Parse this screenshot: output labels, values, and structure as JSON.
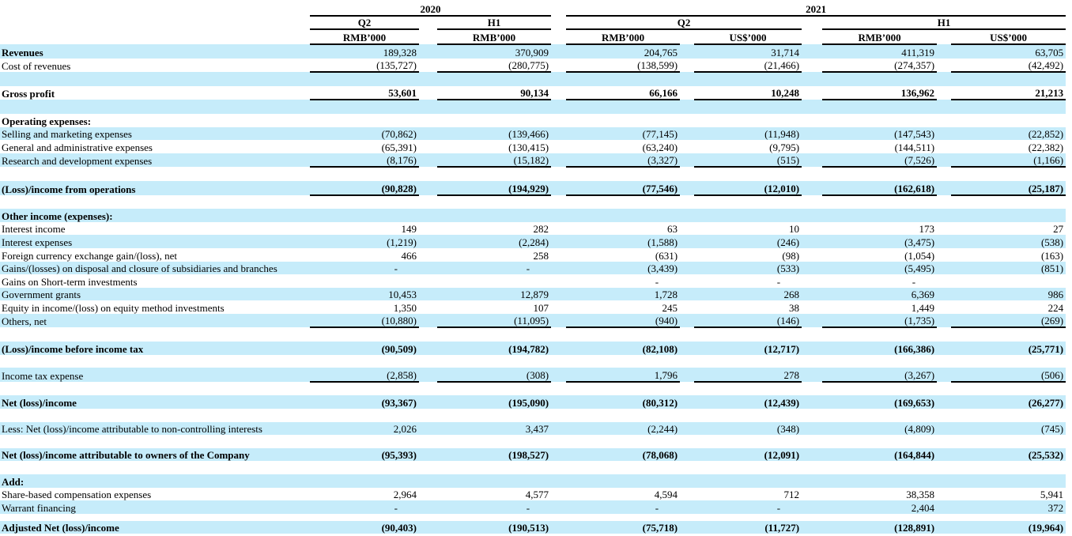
{
  "colors": {
    "stripe": "#c6ecfa",
    "line": "#000000"
  },
  "table": {
    "header": {
      "years": [
        "2020",
        "2021"
      ],
      "periods": [
        "Q2",
        "H1",
        "Q2",
        "H1"
      ],
      "units": [
        "RMB’000",
        "RMB’000",
        "RMB’000",
        "US$’000",
        "RMB’000",
        "US$’000"
      ]
    },
    "rows": [
      {
        "type": "data",
        "label": "Revenues",
        "label_bold": true,
        "values_bold": false,
        "shade": true,
        "underline": false,
        "values": [
          "189,328",
          "370,909",
          "204,765",
          "31,714",
          "411,319",
          "63,705"
        ]
      },
      {
        "type": "data",
        "label": "Cost of revenues",
        "label_bold": false,
        "values_bold": false,
        "shade": false,
        "underline": true,
        "values": [
          "(135,727)",
          "(280,775)",
          "(138,599)",
          "(21,466)",
          "(274,357)",
          "(42,492)"
        ]
      },
      {
        "type": "blank",
        "shade": true
      },
      {
        "type": "data",
        "label": "Gross profit",
        "label_bold": true,
        "values_bold": true,
        "shade": false,
        "underline": true,
        "values": [
          "53,601",
          "90,134",
          "66,166",
          "10,248",
          "136,962",
          "21,213"
        ]
      },
      {
        "type": "blank",
        "shade": true
      },
      {
        "type": "data",
        "label": "Operating expenses:",
        "label_bold": true,
        "values_bold": false,
        "shade": false,
        "underline": false,
        "values": [
          "",
          "",
          "",
          "",
          "",
          ""
        ]
      },
      {
        "type": "data",
        "label": "Selling and marketing expenses",
        "label_bold": false,
        "values_bold": false,
        "shade": true,
        "underline": false,
        "values": [
          "(70,862)",
          "(139,466)",
          "(77,145)",
          "(11,948)",
          "(147,543)",
          "(22,852)"
        ]
      },
      {
        "type": "data",
        "label": "General and administrative expenses",
        "label_bold": false,
        "values_bold": false,
        "shade": false,
        "underline": false,
        "values": [
          "(65,391)",
          "(130,415)",
          "(63,240)",
          "(9,795)",
          "(144,511)",
          "(22,382)"
        ]
      },
      {
        "type": "data",
        "label": "Research and development expenses",
        "label_bold": false,
        "values_bold": false,
        "shade": true,
        "underline": true,
        "values": [
          "(8,176)",
          "(15,182)",
          "(3,327)",
          "(515)",
          "(7,526)",
          "(1,166)"
        ]
      },
      {
        "type": "blank",
        "shade": false
      },
      {
        "type": "data",
        "label": "(Loss)/income from operations",
        "label_bold": true,
        "values_bold": true,
        "shade": true,
        "underline": true,
        "values": [
          "(90,828)",
          "(194,929)",
          "(77,546)",
          "(12,010)",
          "(162,618)",
          "(25,187)"
        ]
      },
      {
        "type": "blank",
        "shade": false
      },
      {
        "type": "data",
        "label": "Other income (expenses):",
        "label_bold": true,
        "values_bold": false,
        "shade": true,
        "underline": false,
        "values": [
          "",
          "",
          "",
          "",
          "",
          ""
        ]
      },
      {
        "type": "data",
        "label": "Interest income",
        "label_bold": false,
        "values_bold": false,
        "shade": false,
        "underline": false,
        "values": [
          "149",
          "282",
          "63",
          "10",
          "173",
          "27"
        ]
      },
      {
        "type": "data",
        "label": "Interest expenses",
        "label_bold": false,
        "values_bold": false,
        "shade": true,
        "underline": false,
        "values": [
          "(1,219)",
          "(2,284)",
          "(1,588)",
          "(246)",
          "(3,475)",
          "(538)"
        ]
      },
      {
        "type": "data",
        "label": "Foreign currency exchange gain/(loss), net",
        "label_bold": false,
        "values_bold": false,
        "shade": false,
        "underline": false,
        "values": [
          "466",
          "258",
          "(631)",
          "(98)",
          "(1,054)",
          "(163)"
        ]
      },
      {
        "type": "data",
        "label": "Gains/(losses) on disposal and closure of subsidiaries and branches",
        "label_bold": false,
        "values_bold": false,
        "shade": true,
        "underline": false,
        "values": [
          "-",
          "-",
          "(3,439)",
          "(533)",
          "(5,495)",
          "(851)"
        ]
      },
      {
        "type": "data",
        "label": "Gains on Short-term investments",
        "label_bold": false,
        "values_bold": false,
        "shade": false,
        "underline": false,
        "values": [
          "",
          "",
          "-",
          "-",
          "-",
          ""
        ]
      },
      {
        "type": "data",
        "label": "Government grants",
        "label_bold": false,
        "values_bold": false,
        "shade": true,
        "underline": false,
        "values": [
          "10,453",
          "12,879",
          "1,728",
          "268",
          "6,369",
          "986"
        ]
      },
      {
        "type": "data",
        "label": "Equity in income/(loss) on equity method investments",
        "label_bold": false,
        "values_bold": false,
        "shade": false,
        "underline": false,
        "values": [
          "1,350",
          "107",
          "245",
          "38",
          "1,449",
          "224"
        ]
      },
      {
        "type": "data",
        "label": "Others, net",
        "label_bold": false,
        "values_bold": false,
        "shade": true,
        "underline": true,
        "values": [
          "(10,880)",
          "(11,095)",
          "(940)",
          "(146)",
          "(1,735)",
          "(269)"
        ]
      },
      {
        "type": "blank",
        "shade": false
      },
      {
        "type": "data",
        "label": "(Loss)/income before income tax",
        "label_bold": true,
        "values_bold": true,
        "shade": true,
        "underline": false,
        "values": [
          "(90,509)",
          "(194,782)",
          "(82,108)",
          "(12,717)",
          "(166,386)",
          "(25,771)"
        ]
      },
      {
        "type": "blank",
        "shade": false
      },
      {
        "type": "data",
        "label": "Income tax expense",
        "label_bold": false,
        "values_bold": false,
        "shade": true,
        "underline": true,
        "values": [
          "(2,858)",
          "(308)",
          "1,796",
          "278",
          "(3,267)",
          "(506)"
        ]
      },
      {
        "type": "blank",
        "shade": false
      },
      {
        "type": "data",
        "label": "Net (loss)/income",
        "label_bold": true,
        "values_bold": true,
        "shade": true,
        "underline": false,
        "values": [
          "(93,367)",
          "(195,090)",
          "(80,312)",
          "(12,439)",
          "(169,653)",
          "(26,277)"
        ]
      },
      {
        "type": "blank",
        "shade": false
      },
      {
        "type": "data",
        "label": "Less: Net (loss)/income attributable to non-controlling interests",
        "label_bold": false,
        "values_bold": false,
        "shade": true,
        "underline": false,
        "values": [
          "2,026",
          "3,437",
          "(2,244)",
          "(348)",
          "(4,809)",
          "(745)"
        ]
      },
      {
        "type": "blank",
        "shade": false
      },
      {
        "type": "data",
        "label": "Net (loss)/income attributable to owners of the Company",
        "label_bold": true,
        "values_bold": true,
        "shade": true,
        "underline": false,
        "values": [
          "(95,393)",
          "(198,527)",
          "(78,068)",
          "(12,091)",
          "(164,844)",
          "(25,532)"
        ]
      },
      {
        "type": "blank",
        "shade": false
      },
      {
        "type": "data",
        "label": "Add:",
        "label_bold": true,
        "values_bold": false,
        "shade": true,
        "underline": false,
        "values": [
          "",
          "",
          "",
          "",
          "",
          ""
        ]
      },
      {
        "type": "data",
        "label": "Share-based compensation expenses",
        "label_bold": false,
        "values_bold": false,
        "shade": false,
        "underline": false,
        "values": [
          "2,964",
          "4,577",
          "4,594",
          "712",
          "38,358",
          "5,941"
        ]
      },
      {
        "type": "data",
        "label": "Warrant financing",
        "label_bold": false,
        "values_bold": false,
        "shade": true,
        "underline": false,
        "values": [
          "-",
          "-",
          "-",
          "-",
          "2,404",
          "372"
        ]
      },
      {
        "type": "blank",
        "shade": false,
        "short": true
      },
      {
        "type": "data",
        "label": "Adjusted Net (loss)/income",
        "label_bold": true,
        "values_bold": true,
        "shade": true,
        "underline": false,
        "values": [
          "(90,403)",
          "(190,513)",
          "(75,718)",
          "(11,727)",
          "(128,891)",
          "(19,964)"
        ]
      }
    ]
  }
}
